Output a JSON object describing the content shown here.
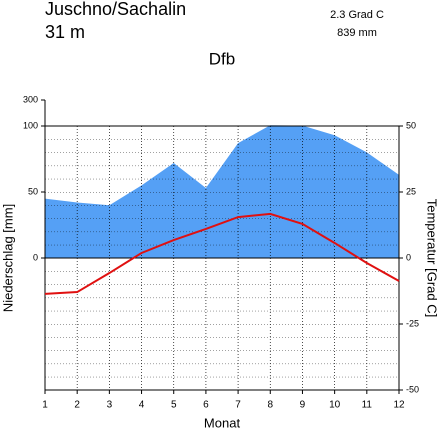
{
  "chart_data": {
    "type": "climate",
    "title": "Juschno/Sachalin",
    "subtitle": "31 m",
    "annotations": [
      "2.3 Grad C",
      "839 mm"
    ],
    "climate_class": "Dfb",
    "x_label": "Monat",
    "y_label": "Niederschlag [mm]",
    "y2_label": "Temperatur [Grad C]",
    "x": [
      1,
      2,
      3,
      4,
      5,
      6,
      7,
      8,
      9,
      10,
      11,
      12
    ],
    "xlim": [
      1,
      12
    ],
    "xticks": [
      1,
      2,
      3,
      4,
      5,
      6,
      7,
      8,
      9,
      10,
      11,
      12
    ],
    "ylim": [
      -100,
      300
    ],
    "yticks": [
      0,
      50,
      100,
      300
    ],
    "y2lim": [
      -50,
      50
    ],
    "y2ticks": [
      50,
      25,
      0,
      -25,
      -50
    ],
    "grid": true,
    "series": [
      {
        "name": "Niederschlag",
        "color": "#55a0f5",
        "values": [
          45,
          42,
          40,
          55,
          72,
          53,
          87,
          106,
          103,
          93,
          80,
          63
        ]
      },
      {
        "name": "Temperatur",
        "color": "#e01010",
        "axis": "y2",
        "values": [
          -13.6,
          -12.9,
          -5.7,
          1.9,
          6.8,
          11,
          15.5,
          16.7,
          12.9,
          5.7,
          -1.9,
          -8.7
        ]
      }
    ]
  }
}
